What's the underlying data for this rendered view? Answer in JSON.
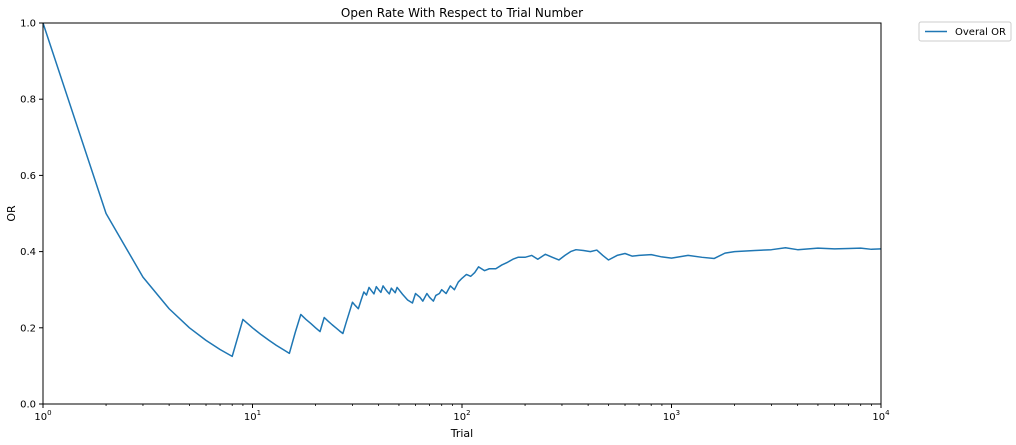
{
  "chart_data": {
    "type": "line",
    "title": "Open Rate With Respect to Trial Number",
    "xlabel": "Trial",
    "ylabel": "OR",
    "xscale": "log",
    "xlim": [
      1,
      10000
    ],
    "ylim": [
      0.0,
      1.0
    ],
    "grid": false,
    "legend_position": "outside-top-right",
    "x_ticks": [
      {
        "value": 1,
        "base": "10",
        "exp": "0"
      },
      {
        "value": 10,
        "base": "10",
        "exp": "1"
      },
      {
        "value": 100,
        "base": "10",
        "exp": "2"
      },
      {
        "value": 1000,
        "base": "10",
        "exp": "3"
      },
      {
        "value": 10000,
        "base": "10",
        "exp": "4"
      }
    ],
    "y_ticks": [
      "0.0",
      "0.2",
      "0.4",
      "0.6",
      "0.8",
      "1.0"
    ],
    "series": [
      {
        "name": "Overal OR",
        "color": "#1f77b4",
        "x": [
          1,
          2,
          3,
          4,
          5,
          6,
          7,
          8,
          9,
          10,
          11,
          12,
          13,
          14,
          15,
          16,
          17,
          18,
          19,
          20,
          21,
          22,
          23,
          24,
          25,
          26,
          27,
          28,
          29,
          30,
          31,
          32,
          33,
          34,
          35,
          36,
          37,
          38,
          39,
          40,
          41,
          42,
          43,
          44,
          45,
          46,
          47,
          48,
          49,
          50,
          52,
          55,
          58,
          60,
          63,
          65,
          68,
          70,
          73,
          75,
          78,
          80,
          84,
          88,
          92,
          96,
          100,
          105,
          110,
          115,
          120,
          128,
          135,
          145,
          155,
          165,
          175,
          185,
          200,
          215,
          230,
          250,
          270,
          290,
          310,
          330,
          350,
          380,
          410,
          440,
          470,
          500,
          550,
          600,
          650,
          700,
          800,
          900,
          1000,
          1200,
          1400,
          1600,
          1800,
          2000,
          2500,
          3000,
          3500,
          4000,
          5000,
          6000,
          7000,
          8000,
          9000,
          10000
        ],
        "y": [
          1.0,
          0.5,
          0.333,
          0.25,
          0.2,
          0.167,
          0.143,
          0.125,
          0.222,
          0.2,
          0.182,
          0.167,
          0.154,
          0.143,
          0.133,
          0.188,
          0.235,
          0.222,
          0.211,
          0.2,
          0.19,
          0.227,
          0.217,
          0.208,
          0.2,
          0.192,
          0.185,
          0.214,
          0.241,
          0.267,
          0.258,
          0.25,
          0.273,
          0.294,
          0.286,
          0.306,
          0.297,
          0.289,
          0.308,
          0.3,
          0.293,
          0.31,
          0.302,
          0.295,
          0.289,
          0.304,
          0.298,
          0.292,
          0.306,
          0.3,
          0.288,
          0.273,
          0.265,
          0.29,
          0.28,
          0.27,
          0.29,
          0.28,
          0.27,
          0.285,
          0.29,
          0.3,
          0.29,
          0.31,
          0.3,
          0.32,
          0.33,
          0.34,
          0.335,
          0.345,
          0.36,
          0.35,
          0.355,
          0.355,
          0.365,
          0.372,
          0.38,
          0.385,
          0.385,
          0.39,
          0.38,
          0.393,
          0.385,
          0.378,
          0.39,
          0.4,
          0.405,
          0.403,
          0.4,
          0.404,
          0.39,
          0.378,
          0.39,
          0.395,
          0.388,
          0.39,
          0.392,
          0.386,
          0.383,
          0.39,
          0.385,
          0.382,
          0.396,
          0.4,
          0.403,
          0.405,
          0.41,
          0.405,
          0.409,
          0.407,
          0.408,
          0.409,
          0.406,
          0.407
        ]
      }
    ]
  }
}
